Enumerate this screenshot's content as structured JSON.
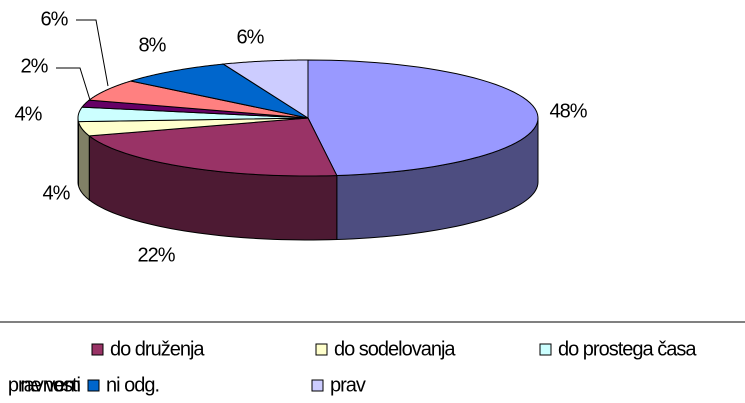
{
  "chart_data": {
    "type": "pie",
    "categories": [
      null,
      "do druženja",
      "do sodelovanja",
      "do prostega časa",
      "pravnosti",
      "ne vem",
      "ni odg.",
      "prav"
    ],
    "values": [
      48,
      22,
      4,
      4,
      2,
      6,
      8,
      6
    ],
    "value_labels": [
      "48%",
      "22%",
      "4%",
      "4%",
      "2%",
      "6%",
      "8%",
      "6%"
    ],
    "colors": [
      "#9999ff",
      "#993366",
      "#ffffcc",
      "#ccffff",
      "#660066",
      "#ff8080",
      "#0066cc",
      "#ccccff"
    ],
    "legend": "bottom"
  }
}
